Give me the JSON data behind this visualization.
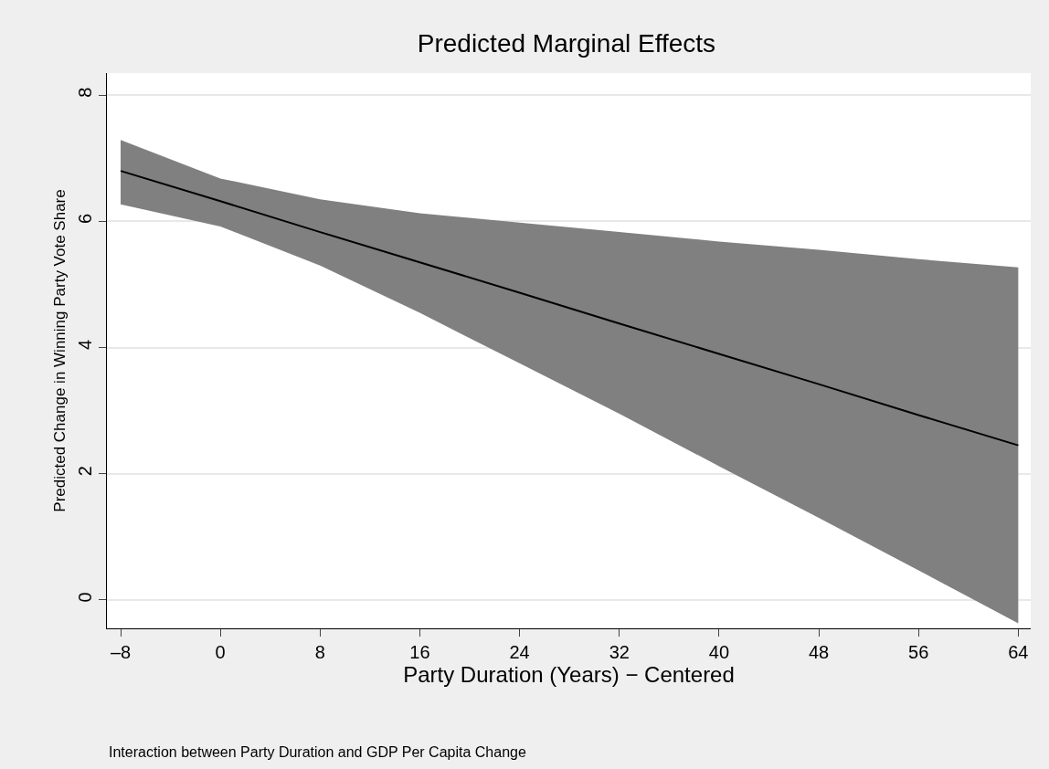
{
  "chart_data": {
    "type": "line",
    "title": "Predicted Marginal Effects",
    "xlabel": "Party Duration (Years) − Centered",
    "ylabel": "Predicted Change in Winning Party Vote Share",
    "annotations": [
      "Interaction between Party Duration and GDP Per Capita Change"
    ],
    "x": [
      -8,
      0,
      8,
      16,
      24,
      32,
      40,
      48,
      56,
      64
    ],
    "series": [
      {
        "color": "#000000",
        "values": [
          6.8,
          6.32,
          5.83,
          5.35,
          4.87,
          4.38,
          3.9,
          3.42,
          2.93,
          2.45
        ],
        "lower": [
          6.27,
          5.92,
          5.3,
          4.55,
          3.75,
          2.95,
          2.12,
          1.3,
          0.47,
          -0.37
        ],
        "upper": [
          7.29,
          6.68,
          6.35,
          6.13,
          5.98,
          5.83,
          5.68,
          5.55,
          5.4,
          5.27
        ]
      }
    ],
    "xlim": [
      -9.1,
      65.0
    ],
    "xticks": [
      {
        "value": -8,
        "label": "–8"
      },
      0,
      8,
      16,
      24,
      32,
      40,
      48,
      56,
      64
    ],
    "ylim": [
      -0.45,
      8.35
    ],
    "yticks": [
      0,
      2,
      4,
      6,
      8
    ],
    "grid": "y",
    "legend": false,
    "marker": "none",
    "line_style": "solid"
  }
}
